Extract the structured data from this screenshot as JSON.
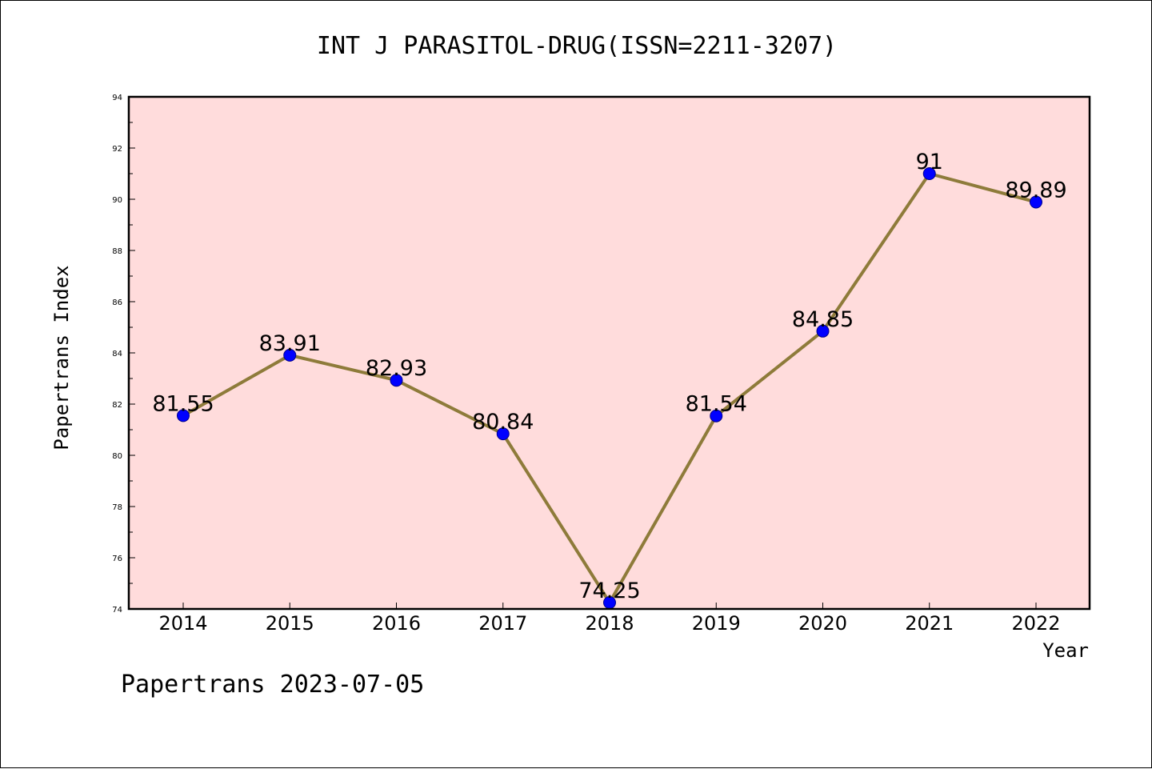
{
  "chart_data": {
    "type": "line",
    "title": "INT J PARASITOL-DRUG(ISSN=2211-3207)",
    "xlabel": "Year",
    "ylabel": "Papertrans Index",
    "x": [
      "2014",
      "2015",
      "2016",
      "2017",
      "2018",
      "2019",
      "2020",
      "2021",
      "2022"
    ],
    "series": [
      {
        "values": [
          81.55,
          83.91,
          82.93,
          80.84,
          74.25,
          81.54,
          84.85,
          91,
          89.89
        ],
        "labels": [
          "81.55",
          "83.91",
          "82.93",
          "80.84",
          "74.25",
          "81.54",
          "84.85",
          "91",
          "89.89"
        ]
      }
    ],
    "ylim": [
      74,
      94
    ],
    "yticks": [
      74,
      76,
      78,
      80,
      82,
      84,
      86,
      88,
      90,
      92,
      94
    ],
    "grid": false,
    "colors": {
      "line": "#8e7b3a",
      "marker": "#0000ff",
      "plot_background": "#ffdcdc"
    }
  },
  "footer": "Papertrans 2023-07-05"
}
